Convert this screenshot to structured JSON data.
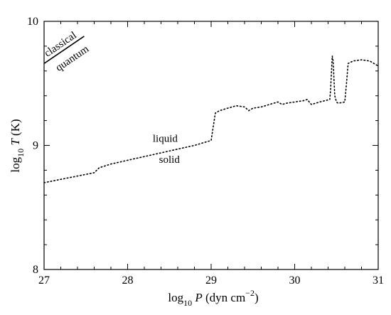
{
  "chart_data": {
    "type": "line",
    "xlabel": {
      "pre": "log",
      "sub": "10",
      "var": "P",
      "post": " (dyn cm",
      "sup": "−2",
      "end": ")"
    },
    "ylabel": {
      "pre": "log",
      "sub": "10",
      "var": "T",
      "post": " (K)"
    },
    "xlim": [
      27,
      31
    ],
    "ylim": [
      8,
      10
    ],
    "xticks": [
      "27",
      "28",
      "29",
      "30",
      "31"
    ],
    "yticks": [
      "8",
      "9",
      "10"
    ],
    "grid": false,
    "annotations": {
      "liquid": "liquid",
      "solid": "solid",
      "classical": "classical",
      "quantum": "quantum"
    },
    "quantum_boundary": {
      "x": [
        27.0,
        27.48
      ],
      "y": [
        9.66,
        9.88
      ]
    },
    "series": [
      {
        "style": "dotted",
        "x": [
          27.0,
          27.3,
          27.6,
          27.66,
          27.8,
          28.0,
          28.2,
          28.4,
          28.6,
          28.8,
          29.0,
          29.05,
          29.1,
          29.2,
          29.3,
          29.4,
          29.45,
          29.5,
          29.6,
          29.7,
          29.8,
          29.85,
          29.9,
          30.0,
          30.1,
          30.15,
          30.2,
          30.3,
          30.42,
          30.43,
          30.45,
          30.46,
          30.48,
          30.5,
          30.52,
          30.6,
          30.62,
          30.64,
          30.7,
          30.8,
          30.9,
          30.95,
          31.0
        ],
        "y": [
          8.7,
          8.74,
          8.78,
          8.82,
          8.85,
          8.88,
          8.91,
          8.94,
          8.97,
          9.0,
          9.04,
          9.26,
          9.28,
          9.3,
          9.32,
          9.31,
          9.28,
          9.3,
          9.31,
          9.33,
          9.35,
          9.33,
          9.34,
          9.35,
          9.36,
          9.37,
          9.33,
          9.35,
          9.37,
          9.45,
          9.72,
          9.68,
          9.4,
          9.35,
          9.34,
          9.35,
          9.5,
          9.66,
          9.68,
          9.69,
          9.68,
          9.66,
          9.64
        ]
      }
    ]
  }
}
